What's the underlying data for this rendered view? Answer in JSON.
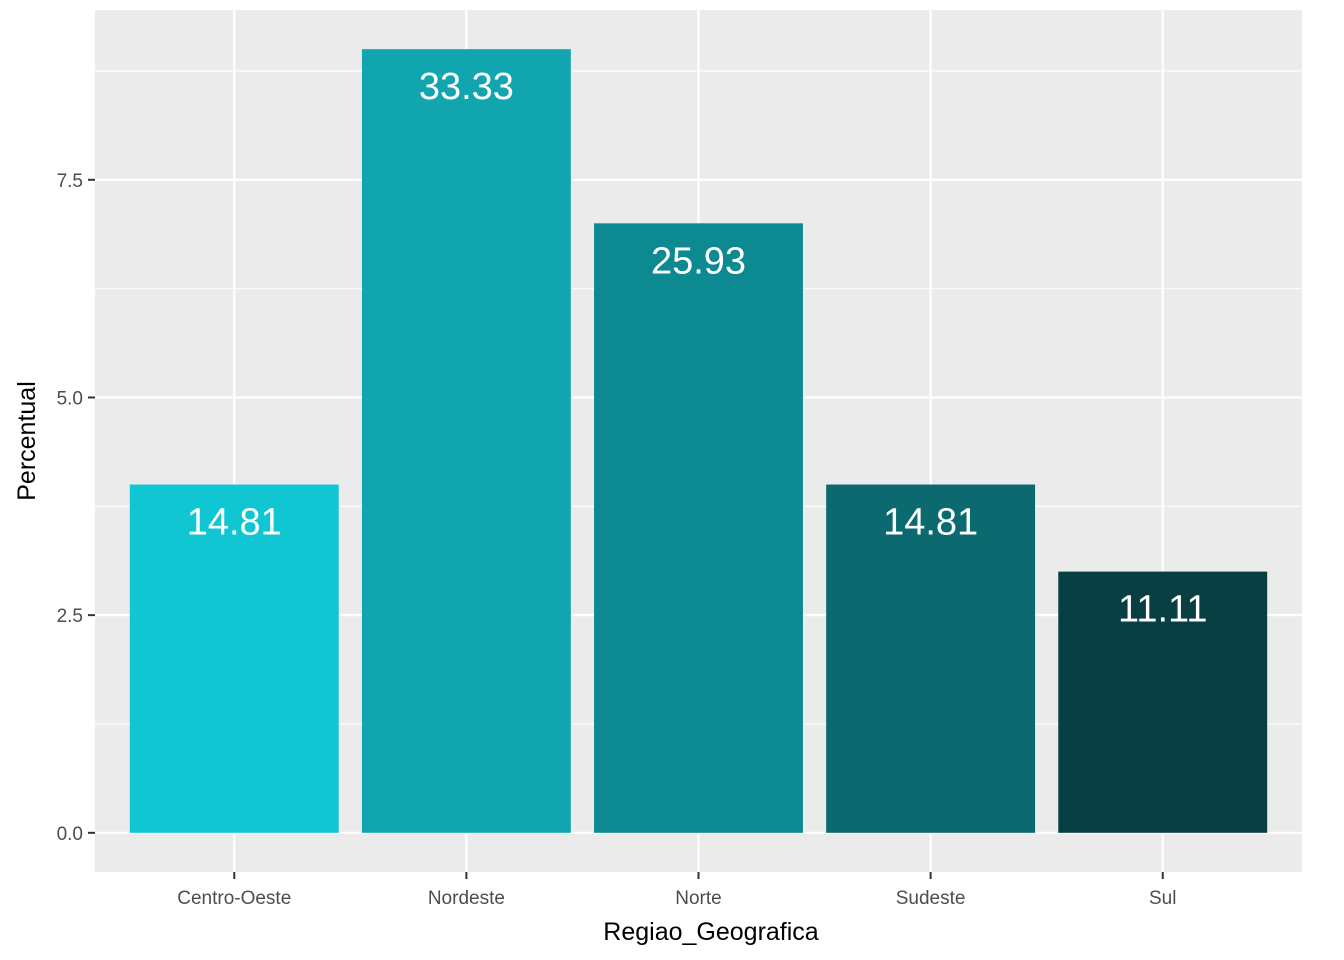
{
  "chart_data": {
    "type": "bar",
    "xlabel": "Regiao_Geografica",
    "ylabel": "Percentual",
    "categories": [
      "Centro-Oeste",
      "Nordeste",
      "Norte",
      "Sudeste",
      "Sul"
    ],
    "values": [
      4,
      9,
      7,
      4,
      3
    ],
    "data_labels": [
      "14.81",
      "33.33",
      "25.93",
      "14.81",
      "11.11"
    ],
    "bar_colors": [
      "#10C6D3",
      "#10A5AF",
      "#0D8A91",
      "#0B6A70",
      "#073F42"
    ],
    "ylim": [
      -0.45,
      9.45
    ],
    "y_ticks": [
      0.0,
      2.5,
      5.0,
      7.5
    ],
    "y_tick_labels": [
      "0.0",
      "2.5",
      "5.0",
      "7.5"
    ],
    "grid": true,
    "legend": "none",
    "panel_background": "#EBEBEB",
    "grid_color": "#FFFFFF"
  }
}
